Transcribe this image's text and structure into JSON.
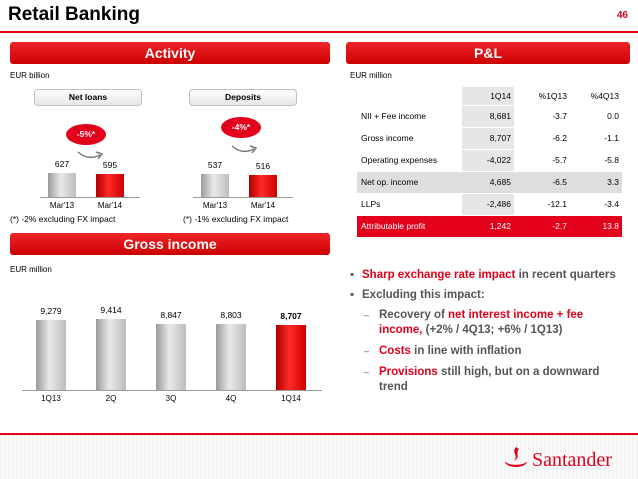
{
  "slide": {
    "title": "Retail Banking",
    "page_number": "46"
  },
  "activity": {
    "heading": "Activity",
    "unit": "EUR billion",
    "net_loans": {
      "label": "Net loans",
      "change_badge": "-5%*",
      "note": "(*) -2% excluding FX impact"
    },
    "deposits": {
      "label": "Deposits",
      "change_badge": "-4%*",
      "note": "(*) -1% excluding FX impact"
    }
  },
  "pl": {
    "heading": "P&L",
    "unit": "EUR million",
    "columns": [
      "1Q14",
      "%1Q13",
      "%4Q13"
    ],
    "rows": [
      {
        "label": "NII + Fee income",
        "values": [
          "8,681",
          "-3.7",
          "0.0"
        ]
      },
      {
        "label": "Gross income",
        "values": [
          "8,707",
          "-6.2",
          "-1.1"
        ]
      },
      {
        "label": "Operating expenses",
        "values": [
          "-4,022",
          "-5.7",
          "-5.8"
        ]
      },
      {
        "label": "Net op. income",
        "values": [
          "4,685",
          "-6.5",
          "3.3"
        ]
      },
      {
        "label": "LLPs",
        "values": [
          "-2,486",
          "-12.1",
          "-3.4"
        ]
      },
      {
        "label": "Attributable profit",
        "values": [
          "1,242",
          "-2.7",
          "13.8"
        ]
      }
    ]
  },
  "gross_income": {
    "heading": "Gross income",
    "unit": "EUR million"
  },
  "bullets": {
    "b1_red": "Sharp exchange rate impact",
    "b1_rest": " in recent quarters",
    "b2": "Excluding this impact:",
    "s1_pre": "Recovery of ",
    "s1_red": "net interest income + fee income,",
    "s1_rest": " (+2% / 4Q13; +6% / 1Q13)",
    "s2_red": "Costs",
    "s2_rest": " in line with inflation",
    "s3_red": "Provisions",
    "s3_rest": " still high, but on a downward trend"
  },
  "brand": {
    "name": "Santander"
  },
  "colors": {
    "accent": "#e2001a",
    "bar_grey": "#c8c8c8"
  },
  "chart_data": [
    {
      "type": "bar",
      "title": "Net loans",
      "categories": [
        "Mar'13",
        "Mar'14"
      ],
      "values": [
        627,
        595
      ],
      "value_labels": [
        "627",
        "595"
      ],
      "highlight_last": true,
      "ylim": [
        0,
        900
      ]
    },
    {
      "type": "bar",
      "title": "Deposits",
      "categories": [
        "Mar'13",
        "Mar'14"
      ],
      "values": [
        537,
        516
      ],
      "value_labels": [
        "537",
        "516"
      ],
      "highlight_last": true,
      "ylim": [
        0,
        900
      ]
    },
    {
      "type": "bar",
      "title": "Gross income",
      "categories": [
        "1Q13",
        "2Q",
        "3Q",
        "4Q",
        "1Q14"
      ],
      "values": [
        9279,
        9414,
        8847,
        8803,
        8707
      ],
      "value_labels": [
        "9,279",
        "9,414",
        "8,847",
        "8,803",
        "8,707"
      ],
      "highlight_last": true,
      "ylim": [
        0,
        10000
      ]
    }
  ]
}
